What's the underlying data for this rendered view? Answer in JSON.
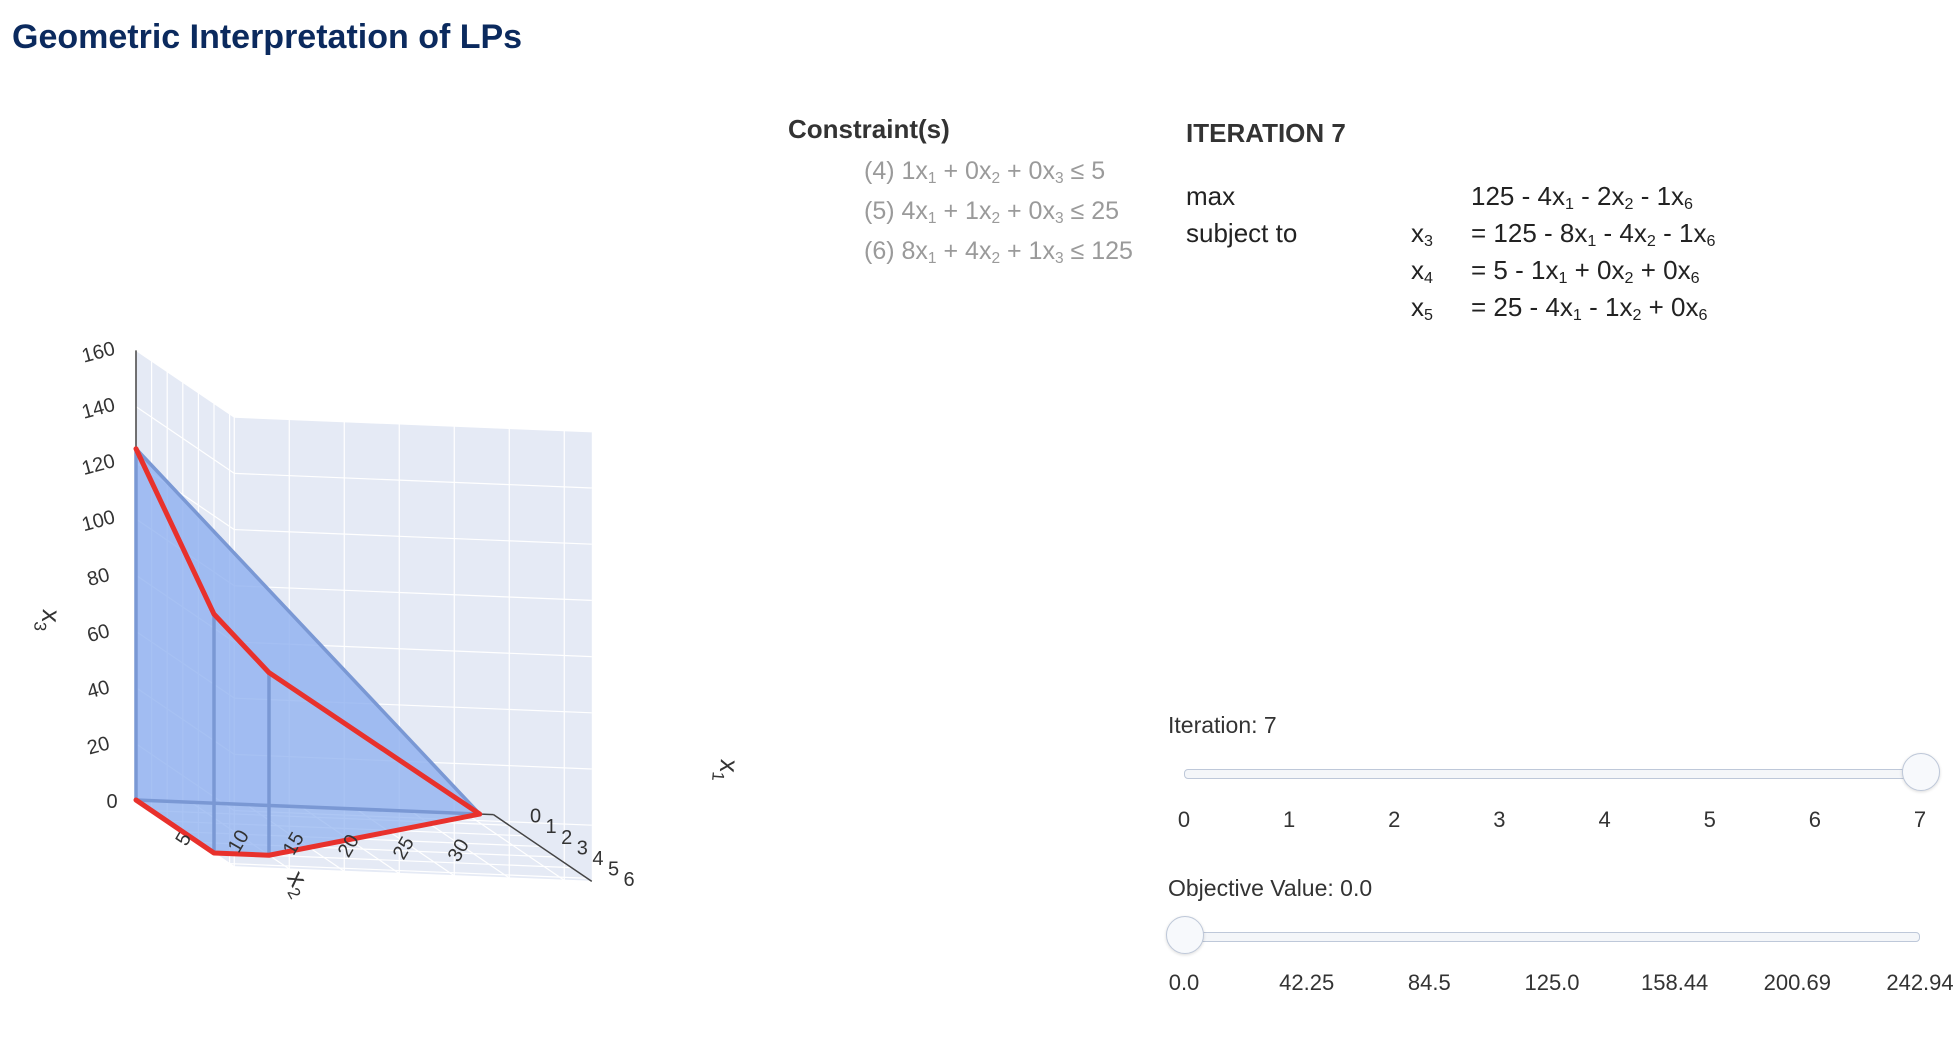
{
  "page": {
    "title": "Geometric Interpretation of LPs"
  },
  "constraints": {
    "heading": "Constraint(s)",
    "items": [
      {
        "num": "(4)",
        "c1": "1",
        "c2": "0",
        "c3": "0",
        "rhs": "5"
      },
      {
        "num": "(5)",
        "c1": "4",
        "c2": "1",
        "c3": "0",
        "rhs": "25"
      },
      {
        "num": "(6)",
        "c1": "8",
        "c2": "4",
        "c3": "1",
        "rhs": "125"
      }
    ]
  },
  "iteration": {
    "heading": "ITERATION 7",
    "max_label": "max",
    "subject_to_label": "subject to",
    "objective": {
      "const": "125",
      "t1": "4",
      "t2": "2",
      "t3": "1"
    },
    "constraints": [
      {
        "basic": "3",
        "const": "125",
        "op1": "-",
        "t1": "8",
        "op2": "-",
        "t2": "4",
        "op3": "-",
        "t3": "1"
      },
      {
        "basic": "4",
        "const": "5",
        "op1": "-",
        "t1": "1",
        "op2": "+",
        "t2": "0",
        "op3": "+",
        "t3": "0"
      },
      {
        "basic": "5",
        "const": "25",
        "op1": "-",
        "t1": "4",
        "op2": "-",
        "t2": "1",
        "op3": "+",
        "t3": "0"
      }
    ]
  },
  "chart_data": {
    "type": "3d-polytope",
    "xlabel": "x1",
    "ylabel": "x2",
    "zlabel": "x3",
    "x_ticks": [
      "0",
      "1",
      "2",
      "3",
      "4",
      "5",
      "6"
    ],
    "y_ticks": [
      "5",
      "10",
      "15",
      "20",
      "25",
      "30"
    ],
    "z_ticks": [
      "0",
      "20",
      "40",
      "60",
      "80",
      "100",
      "120",
      "140",
      "160"
    ],
    "vertices": [
      [
        0,
        0,
        0
      ],
      [
        0,
        31.25,
        0
      ],
      [
        0,
        0,
        125
      ],
      [
        5,
        0,
        0
      ],
      [
        5,
        5,
        0
      ],
      [
        5,
        0,
        85
      ],
      [
        5,
        5,
        65
      ]
    ],
    "path": [
      [
        0,
        0,
        0
      ],
      [
        5,
        0,
        0
      ],
      [
        5,
        5,
        0
      ],
      [
        0,
        31.25,
        0
      ],
      [
        0,
        31.25,
        0
      ],
      [
        5,
        5,
        65
      ],
      [
        5,
        0,
        85
      ],
      [
        0,
        0,
        125
      ]
    ],
    "fill_color": "#8fb1f0",
    "edge_color": "#7a98d4",
    "path_color": "#e8312c"
  },
  "sliders": {
    "iteration": {
      "label": "Iteration:",
      "value": "7",
      "ticks": [
        "0",
        "1",
        "2",
        "3",
        "4",
        "5",
        "6",
        "7"
      ],
      "position_fraction": 1.0
    },
    "objective": {
      "label": "Objective Value:",
      "value": "0.0",
      "ticks": [
        "0.0",
        "42.25",
        "84.5",
        "125.0",
        "158.44",
        "200.69",
        "242.94"
      ],
      "position_fraction": 0.0
    }
  }
}
